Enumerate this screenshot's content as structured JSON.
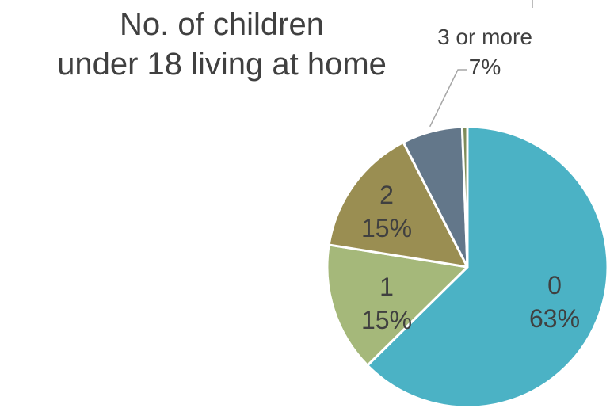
{
  "chart_data": {
    "type": "pie",
    "title_lines": [
      "No. of children",
      "under 18 living at home"
    ],
    "slices": [
      {
        "label": "0",
        "value": 63,
        "percent_label": "63%",
        "color": "#4BB2C5"
      },
      {
        "label": "1",
        "value": 15,
        "percent_label": "15%",
        "color": "#A5B87A"
      },
      {
        "label": "2",
        "value": 15,
        "percent_label": "15%",
        "color": "#9A8E52"
      },
      {
        "label": "3 or more",
        "value": 7,
        "percent_label": "7%",
        "color": "#63778A"
      },
      {
        "label": "",
        "value": 0.6,
        "percent_label": "",
        "color": "#7F8C5A"
      }
    ],
    "legend": "none"
  }
}
